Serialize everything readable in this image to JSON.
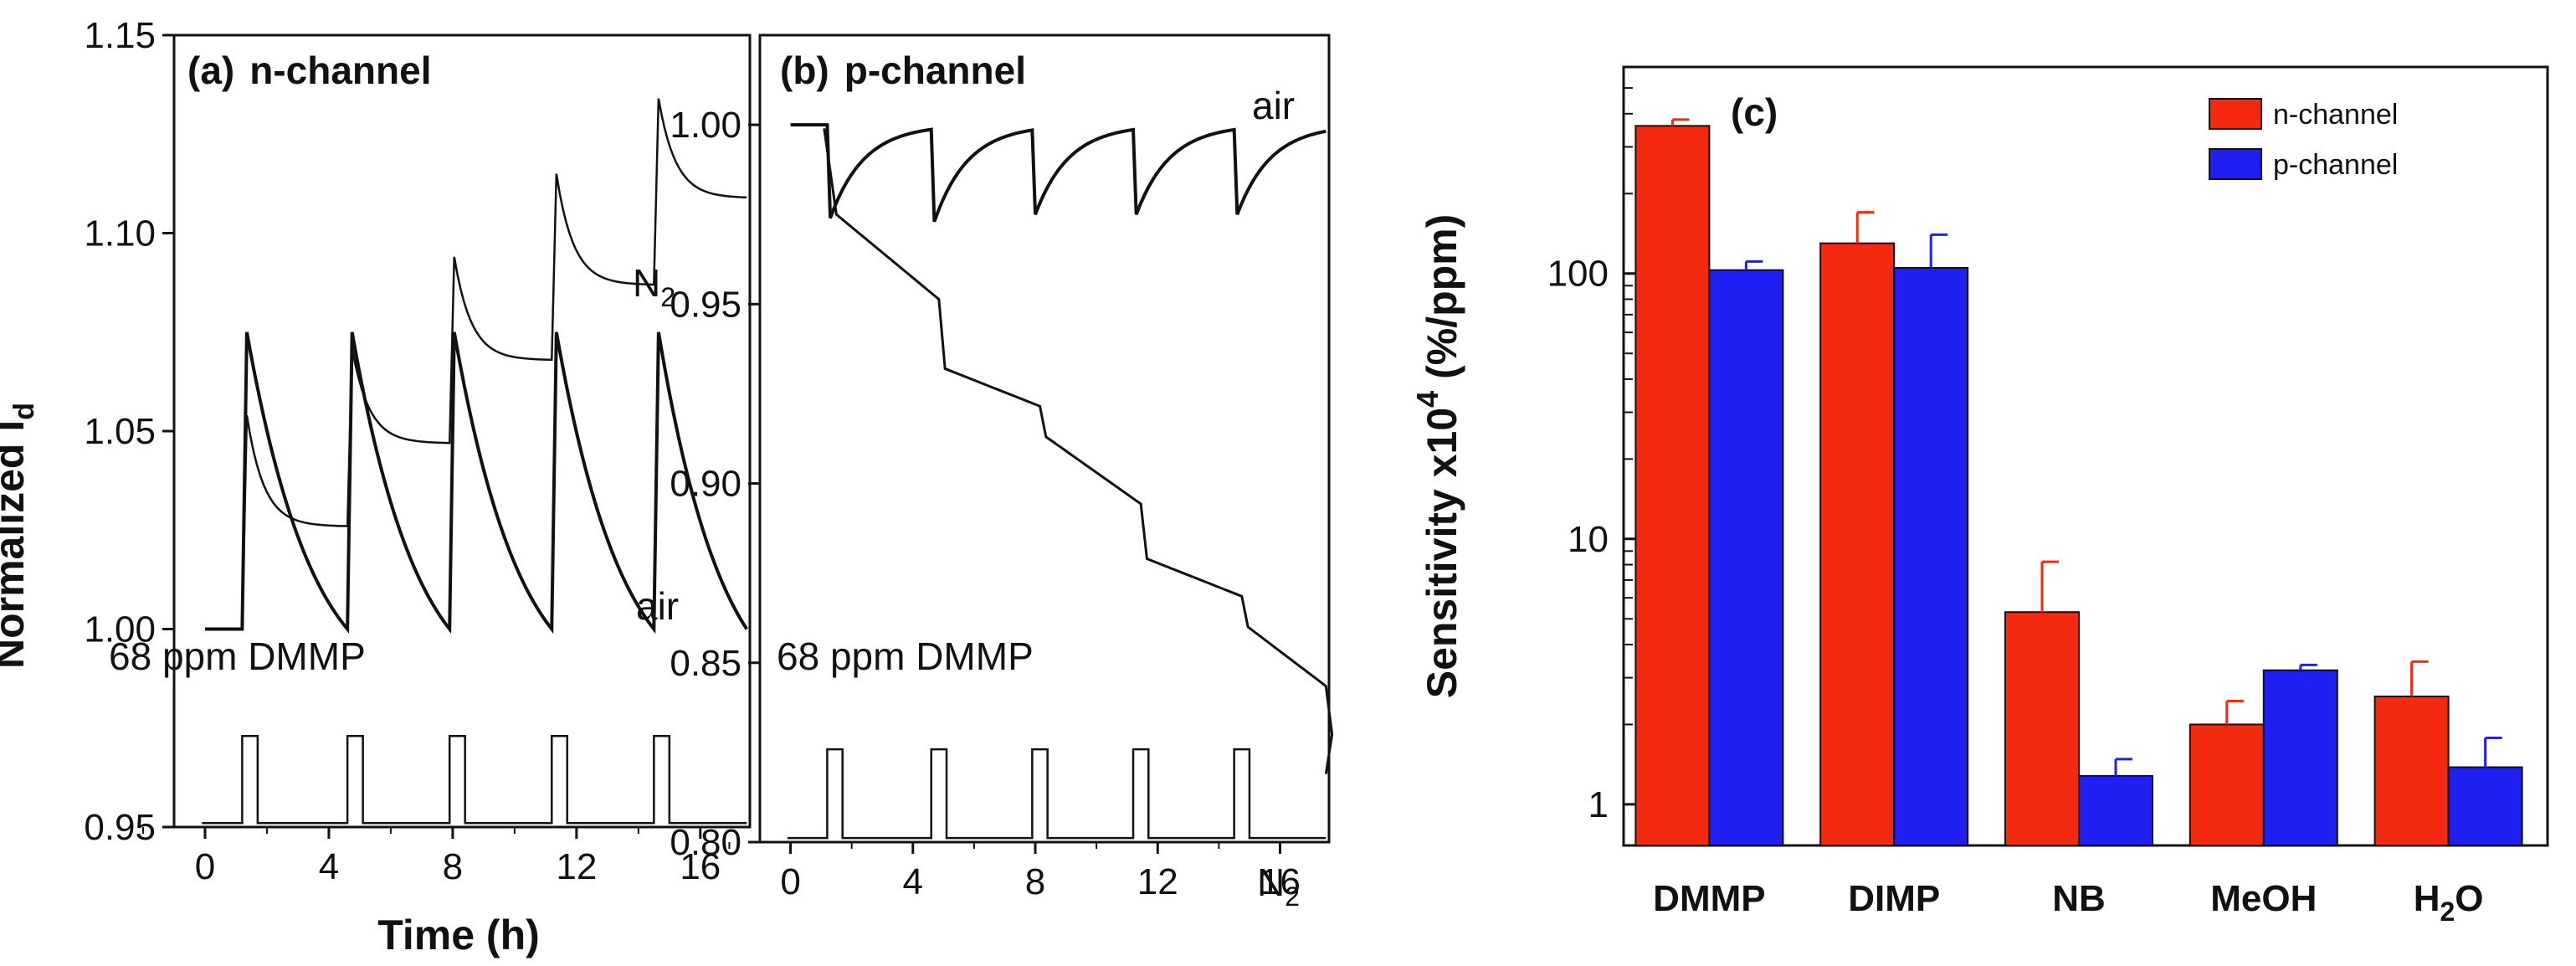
{
  "chart_data": [
    {
      "type": "line",
      "panel_label": "(a)",
      "title": "n-channel",
      "xlabel": "Time (h)",
      "ylabel_main": "Normalized I",
      "ylabel_sub": "d",
      "xlim": [
        -1,
        17.6
      ],
      "ylim": [
        0.95,
        1.15
      ],
      "xticks": [
        "0",
        "4",
        "8",
        "12",
        "16"
      ],
      "yticks": [
        "0.95",
        "1.00",
        "1.05",
        "1.10",
        "1.15"
      ],
      "pulse_label": "68 ppm DMMP",
      "pulse_times": [
        1.2,
        4.6,
        7.9,
        11.2,
        14.5
      ],
      "pulse_width": 0.5,
      "series": [
        {
          "name": "N2",
          "label_main": "N",
          "label_sub": "2",
          "baseline": 1.0,
          "peaks": [
            1.054,
            1.071,
            1.094,
            1.115,
            1.134
          ],
          "troughs": [
            1.026,
            1.047,
            1.068,
            1.087,
            1.109
          ],
          "decay_h": 0.55
        },
        {
          "name": "air",
          "label_main": "air",
          "label_sub": "",
          "baseline": 1.0,
          "peaks": [
            1.075,
            1.075,
            1.075,
            1.075,
            1.075
          ],
          "troughs": [
            1.0,
            1.0,
            1.0,
            1.0,
            1.0
          ],
          "decay_h": 1.2
        }
      ]
    },
    {
      "type": "line",
      "panel_label": "(b)",
      "title": "p-channel",
      "xlabel": "Time (h)",
      "xlim": [
        -1,
        17.6
      ],
      "ylim": [
        0.8,
        1.025
      ],
      "xticks": [
        "0",
        "4",
        "8",
        "12",
        "16"
      ],
      "yticks": [
        "0.80",
        "0.85",
        "0.90",
        "0.95",
        "1.00"
      ],
      "pulse_label": "68 ppm DMMP",
      "pulse_times": [
        1.2,
        4.6,
        7.9,
        11.2,
        14.5
      ],
      "pulse_width": 0.5,
      "series": [
        {
          "name": "air",
          "label_main": "air",
          "label_sub": "",
          "baseline": 1.0,
          "dips": [
            0.974,
            0.973,
            0.975,
            0.975,
            0.975
          ],
          "recover_to": 1.0
        },
        {
          "name": "N2",
          "label_main": "N",
          "label_sub": "2",
          "levels": [
            0.975,
            0.932,
            0.913,
            0.879,
            0.86,
            0.83
          ],
          "end": 0.819
        }
      ]
    },
    {
      "type": "bar",
      "panel_label": "(c)",
      "ylabel_main": "Sensitivity x10",
      "ylabel_sup": "4",
      "ylabel_tail": " (%/ppm)",
      "yscale": "log",
      "ylim": [
        0.7,
        600
      ],
      "yticks": [
        "1",
        "10",
        "100"
      ],
      "categories": [
        "DMMP",
        "DIMP",
        "NB",
        "MeOH",
        "H₂O"
      ],
      "category_labels": [
        {
          "main": "DMMP",
          "sub": ""
        },
        {
          "main": "DIMP",
          "sub": ""
        },
        {
          "main": "NB",
          "sub": ""
        },
        {
          "main": "MeOH",
          "sub": ""
        },
        {
          "main": "H",
          "sub": "2",
          "tail": "O"
        }
      ],
      "legend_position": "top-right",
      "series": [
        {
          "name": "n-channel",
          "color": "#f42a10",
          "values": [
            360,
            130,
            5.3,
            2.0,
            2.55
          ],
          "errors": [
            20,
            40,
            2.9,
            0.45,
            0.9
          ]
        },
        {
          "name": "p-channel",
          "color": "#1f1ff2",
          "values": [
            103,
            105,
            1.28,
            3.2,
            1.38
          ],
          "errors": [
            8,
            35,
            0.2,
            0.15,
            0.4
          ]
        }
      ]
    }
  ]
}
